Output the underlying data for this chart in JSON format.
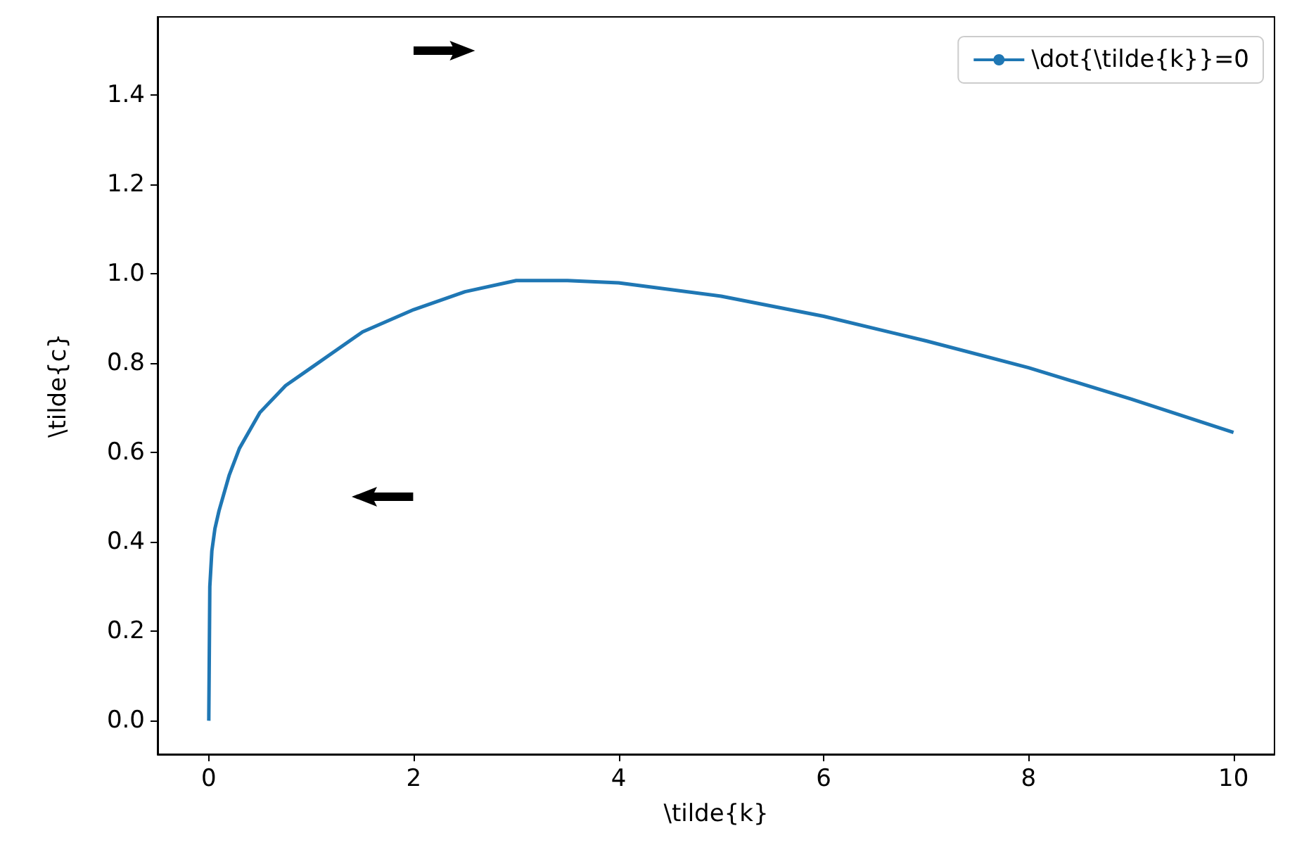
{
  "chart_data": {
    "type": "line",
    "xlabel": "\\tilde{k}",
    "ylabel": "\\tilde{c}",
    "xlim": [
      -0.5,
      10.4
    ],
    "ylim": [
      -0.075,
      1.575
    ],
    "xticks": [
      0,
      2,
      4,
      6,
      8,
      10
    ],
    "yticks": [
      {
        "value": 0,
        "label": "0.0"
      },
      {
        "value": 0.2,
        "label": "0.2"
      },
      {
        "value": 0.4,
        "label": "0.4"
      },
      {
        "value": 0.6,
        "label": "0.6"
      },
      {
        "value": 0.8,
        "label": "0.8"
      },
      {
        "value": 1.0,
        "label": "1.0"
      },
      {
        "value": 1.2,
        "label": "1.2"
      },
      {
        "value": 1.4,
        "label": "1.4"
      }
    ],
    "grid": false,
    "legend": "top right",
    "marker": "none",
    "line_style": "solid",
    "series": [
      {
        "name": "\\dot{\\tilde{k}}=0",
        "color": "#1f77b4",
        "x": [
          0,
          0.01,
          0.03,
          0.06,
          0.1,
          0.2,
          0.3,
          0.5,
          0.75,
          1,
          1.5,
          2,
          2.5,
          3,
          3.5,
          4,
          5,
          6,
          7,
          8,
          9,
          10
        ],
        "values": [
          0,
          0.3,
          0.38,
          0.43,
          0.47,
          0.55,
          0.61,
          0.69,
          0.75,
          0.79,
          0.87,
          0.92,
          0.96,
          0.985,
          0.985,
          0.98,
          0.95,
          0.905,
          0.85,
          0.79,
          0.72,
          0.645
        ]
      }
    ]
  }
}
